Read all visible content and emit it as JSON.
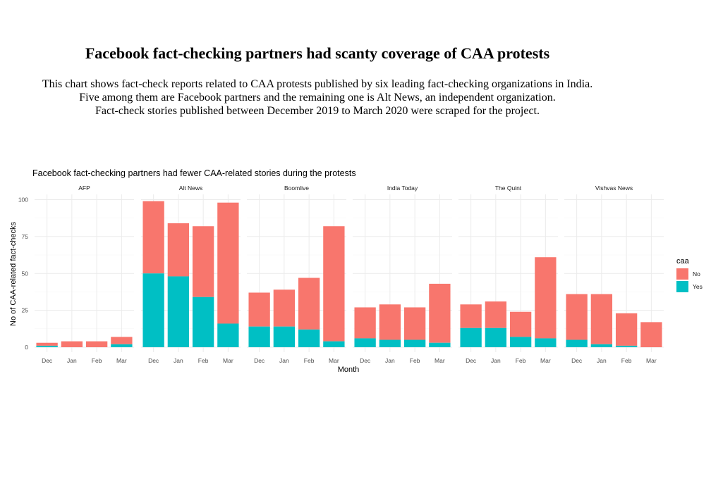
{
  "page": {
    "title": "Facebook fact-checking partners had scanty coverage of CAA protests",
    "subtitle_lines": [
      "This chart shows fact-check reports related to CAA protests published by six leading fact-checking organizations in India.",
      "Five among them are Facebook partners and the remaining one is Alt News, an independent organization.",
      "Fact-check stories published between December 2019 to March 2020 were scraped for the project."
    ]
  },
  "chart_data": {
    "type": "bar",
    "stacked": true,
    "faceted": true,
    "title": "Facebook fact-checking partners had fewer CAA-related stories during the protests",
    "xlabel": "Month",
    "ylabel": "No of CAA-related fact-checks",
    "ylim": [
      0,
      100
    ],
    "yticks": [
      0,
      25,
      50,
      75,
      100
    ],
    "grid": true,
    "categories": [
      "Dec",
      "Jan",
      "Feb",
      "Mar"
    ],
    "legend": {
      "title": "caa",
      "position": "right",
      "entries": [
        {
          "label": "No",
          "color": "#F8766D"
        },
        {
          "label": "Yes",
          "color": "#00BFC4"
        }
      ]
    },
    "facets": [
      {
        "name": "AFP",
        "yes": [
          1,
          0,
          0,
          2
        ],
        "no": [
          2,
          4,
          4,
          5
        ]
      },
      {
        "name": "Alt News",
        "yes": [
          50,
          48,
          34,
          16
        ],
        "no": [
          49,
          36,
          48,
          82
        ]
      },
      {
        "name": "Boomlive",
        "yes": [
          14,
          14,
          12,
          4
        ],
        "no": [
          23,
          25,
          35,
          78
        ]
      },
      {
        "name": "India Today",
        "yes": [
          6,
          5,
          5,
          3
        ],
        "no": [
          21,
          24,
          22,
          40
        ]
      },
      {
        "name": "The Quint",
        "yes": [
          13,
          13,
          7,
          6
        ],
        "no": [
          16,
          18,
          17,
          55
        ]
      },
      {
        "name": "Vishvas News",
        "yes": [
          5,
          2,
          1,
          0
        ],
        "no": [
          31,
          34,
          22,
          17
        ]
      }
    ]
  }
}
